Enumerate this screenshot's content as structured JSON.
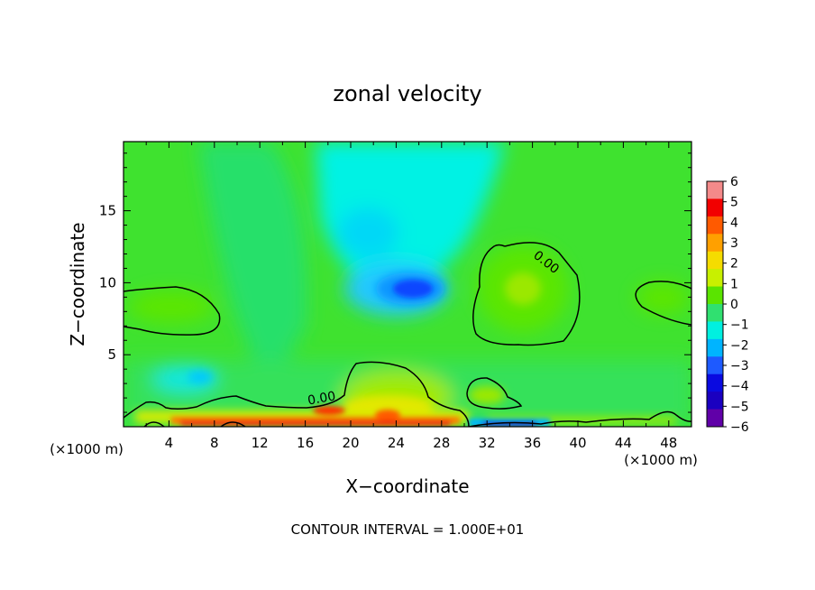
{
  "chart_data": {
    "type": "heatmap",
    "title": "zonal velocity",
    "xlabel": "X−coordinate",
    "ylabel": "Z−coordinate",
    "xlim": [
      0,
      50
    ],
    "ylim": [
      0,
      19.8
    ],
    "x_unit": "(×1000 m)",
    "x_ticks": [
      4,
      8,
      12,
      16,
      20,
      24,
      28,
      32,
      36,
      40,
      44,
      48
    ],
    "y_ticks": [
      5,
      10,
      15
    ],
    "footer": "CONTOUR INTERVAL = 1.000E+01",
    "contour_labels": [
      {
        "text": "0.00",
        "x": 37,
        "z": 11.2
      },
      {
        "text": "0.00",
        "x": 17.5,
        "z": 1.7
      }
    ],
    "colorbar": {
      "levels": [
        6,
        5,
        4,
        3,
        2,
        1,
        0,
        -1,
        -2,
        -3,
        -4,
        -5,
        -6
      ],
      "tick_labels": [
        "6",
        "5",
        "4",
        "3",
        "2",
        "1",
        "0",
        "−1",
        "−2",
        "−3",
        "−4",
        "−5",
        "−6"
      ],
      "colors": [
        "#f48a8a",
        "#f20000",
        "#ff5a00",
        "#ffa000",
        "#f5dc00",
        "#c8f000",
        "#5ae400",
        "#30e070",
        "#00f0e0",
        "#00b4ff",
        "#1e5aff",
        "#0a0ae0",
        "#1a00c0",
        "#6000a8"
      ]
    }
  }
}
